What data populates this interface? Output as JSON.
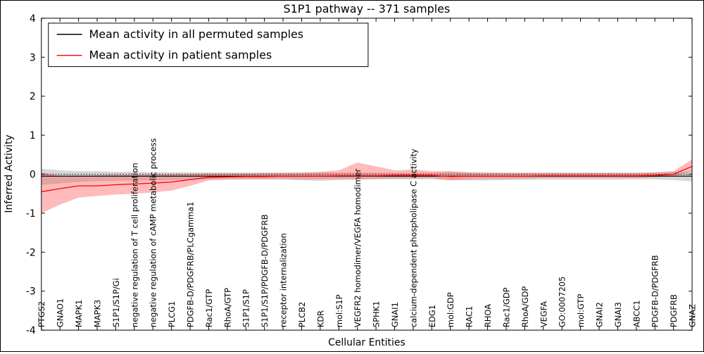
{
  "chart_data": {
    "type": "line",
    "title": "S1P1 pathway -- 371 samples",
    "xlabel": "Cellular Entities",
    "ylabel": "Inferred Activity",
    "ylim": [
      -4,
      4
    ],
    "yticks": [
      -4,
      -3,
      -2,
      -1,
      0,
      1,
      2,
      3,
      4
    ],
    "grid": false,
    "zero_line": 0,
    "legend_position": "upper-left",
    "categories": [
      "PTGS2",
      "GNAO1",
      "MAPK1",
      "MAPK3",
      "S1P1/S1P/Gi",
      "negative regulation of T cell proliferation",
      "negative regulation of cAMP metabolic process",
      "PLCG1",
      "PDGFB-D/PDGFRB/PLCgamma1",
      "Rac1/GTP",
      "RhoA/GTP",
      "S1P1/S1P",
      "S1P1/S1P/PDGFB-D/PDGFRB",
      "receptor internalization",
      "PLCB2",
      "KDR",
      "mol:S1P",
      "VEGFR2 homodimer/VEGFA homodimer",
      "SPHK1",
      "GNAI1",
      "calcium-dependent phospholipase C activity",
      "EDG1",
      "mol:GDP",
      "RAC1",
      "RHOA",
      "Rac1/GDP",
      "RhoA/GDP",
      "VEGFA",
      "GO:0007205",
      "mol:GTP",
      "GNAI2",
      "GNAI3",
      "ABCC1",
      "PDGFB-D/PDGFRB",
      "PDGFRB",
      "GNAZ"
    ],
    "series": [
      {
        "name": "Mean activity in all permuted samples",
        "color": "#000000",
        "band_color": "#999999",
        "band_opacity": 0.4,
        "values": [
          -0.05,
          -0.05,
          -0.05,
          -0.05,
          -0.05,
          -0.05,
          -0.05,
          -0.05,
          -0.05,
          -0.05,
          -0.05,
          -0.05,
          -0.05,
          -0.05,
          -0.05,
          -0.05,
          -0.05,
          -0.05,
          -0.05,
          -0.05,
          -0.05,
          -0.05,
          -0.05,
          -0.05,
          -0.05,
          -0.05,
          -0.05,
          -0.05,
          -0.05,
          -0.05,
          -0.05,
          -0.05,
          -0.05,
          -0.05,
          -0.05,
          -0.05
        ],
        "band_upper": [
          0.14,
          0.1,
          0.08,
          0.08,
          0.06,
          0.06,
          0.05,
          0.05,
          0.05,
          0.04,
          0.04,
          0.04,
          0.04,
          0.04,
          0.04,
          0.04,
          0.04,
          0.05,
          0.04,
          0.04,
          0.04,
          0.04,
          0.06,
          0.05,
          0.05,
          0.04,
          0.04,
          0.04,
          0.04,
          0.04,
          0.04,
          0.04,
          0.04,
          0.04,
          0.06,
          0.08
        ],
        "band_lower": [
          -0.28,
          -0.24,
          -0.2,
          -0.18,
          -0.17,
          -0.16,
          -0.16,
          -0.15,
          -0.14,
          -0.13,
          -0.13,
          -0.13,
          -0.13,
          -0.14,
          -0.16,
          -0.17,
          -0.15,
          -0.14,
          -0.13,
          -0.13,
          -0.13,
          -0.13,
          -0.15,
          -0.16,
          -0.16,
          -0.15,
          -0.14,
          -0.14,
          -0.14,
          -0.14,
          -0.14,
          -0.14,
          -0.13,
          -0.13,
          -0.15,
          -0.18
        ]
      },
      {
        "name": "Mean activity in patient samples",
        "color": "#ff0000",
        "band_color": "#ff5555",
        "band_opacity": 0.4,
        "values": [
          -0.45,
          -0.37,
          -0.3,
          -0.3,
          -0.27,
          -0.25,
          -0.23,
          -0.2,
          -0.14,
          -0.08,
          -0.07,
          -0.06,
          -0.06,
          -0.05,
          -0.05,
          -0.05,
          -0.04,
          -0.04,
          -0.04,
          -0.03,
          -0.03,
          -0.03,
          -0.06,
          -0.05,
          -0.05,
          -0.05,
          -0.05,
          -0.04,
          -0.04,
          -0.04,
          -0.04,
          -0.04,
          -0.04,
          -0.03,
          0.0,
          0.2
        ],
        "band_upper": [
          0.05,
          -0.05,
          -0.05,
          -0.03,
          -0.02,
          -0.02,
          -0.02,
          0.0,
          0.0,
          0.02,
          0.02,
          0.02,
          0.03,
          0.03,
          0.04,
          0.06,
          0.1,
          0.3,
          0.2,
          0.1,
          0.12,
          0.08,
          0.08,
          0.04,
          0.03,
          0.03,
          0.03,
          0.03,
          0.03,
          0.03,
          0.03,
          0.03,
          0.03,
          0.05,
          0.08,
          0.38
        ],
        "band_lower": [
          -1.0,
          -0.78,
          -0.6,
          -0.56,
          -0.52,
          -0.5,
          -0.47,
          -0.42,
          -0.3,
          -0.16,
          -0.14,
          -0.13,
          -0.13,
          -0.12,
          -0.13,
          -0.13,
          -0.12,
          -0.13,
          -0.12,
          -0.11,
          -0.11,
          -0.1,
          -0.16,
          -0.13,
          -0.12,
          -0.12,
          -0.11,
          -0.1,
          -0.1,
          -0.1,
          -0.1,
          -0.1,
          -0.1,
          -0.08,
          -0.05,
          0.06
        ]
      }
    ]
  }
}
